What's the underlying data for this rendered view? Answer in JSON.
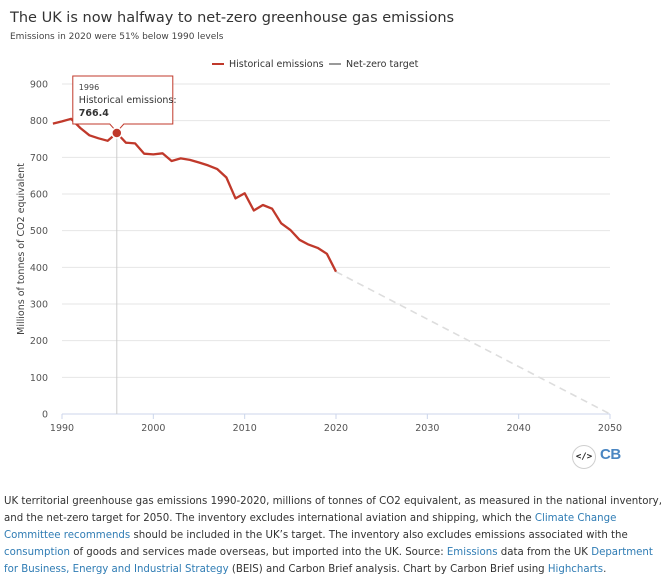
{
  "title": "The UK is now halfway to net-zero greenhouse gas emissions",
  "subtitle": "Emissions in 2020 were 51% below 1990 levels",
  "tooltip": {
    "year": "1996",
    "label": "Historical emissions:",
    "value": "766.4"
  },
  "embed_icon": "code-embed-icon",
  "logo_text": "CB",
  "caption": {
    "t1": "UK territorial greenhouse gas emissions 1990-2020, millions of tonnes of CO2 equivalent, as measured in the national inventory, and the net-zero target for 2050. The inventory excludes international aviation and shipping, which the ",
    "link1": "Climate Change Committee recommends",
    "t2": " should be included in the UK’s target. The inventory also excludes emissions associated with the ",
    "link2": "consumption",
    "t3": " of goods and services made overseas, but imported into the UK. Source: ",
    "link3": "Emissions",
    "t4": " data from the UK ",
    "link4": "Department for Business, Energy and Industrial Strategy",
    "t5": " (BEIS) and Carbon Brief analysis. Chart by Carbon Brief using ",
    "link5": "Highcharts",
    "t6": "."
  },
  "colors": {
    "historical": "#c0392b",
    "target": "#dddddd",
    "grid": "#e6e6e6",
    "crosshair": "#cccccc"
  },
  "chart_data": {
    "type": "line",
    "title": "The UK is now halfway to net-zero greenhouse gas emissions",
    "subtitle": "Emissions in 2020 were 51% below 1990 levels",
    "xlabel": "",
    "ylabel": "Millions of tonnes of CO2 equivalent",
    "xlim": [
      1990,
      2050
    ],
    "ylim": [
      0,
      900
    ],
    "x_ticks": [
      1990,
      2000,
      2010,
      2020,
      2030,
      2040,
      2050
    ],
    "y_ticks": [
      0,
      100,
      200,
      300,
      400,
      500,
      600,
      700,
      800,
      900
    ],
    "grid": true,
    "legend_position": "top-right",
    "series": [
      {
        "name": "Historical emissions",
        "x": [
          1989,
          1990,
          1991,
          1992,
          1993,
          1994,
          1995,
          1996,
          1997,
          1998,
          1999,
          2000,
          2001,
          2002,
          2003,
          2004,
          2005,
          2006,
          2007,
          2008,
          2009,
          2010,
          2011,
          2012,
          2013,
          2014,
          2015,
          2016,
          2017,
          2018,
          2019,
          2020
        ],
        "y": [
          792,
          798,
          805,
          780,
          760,
          752,
          745,
          766.4,
          740,
          738,
          710,
          708,
          711,
          690,
          697,
          693,
          686,
          678,
          668,
          645,
          588,
          602,
          555,
          570,
          560,
          520,
          502,
          475,
          462,
          453,
          437,
          388
        ]
      },
      {
        "name": "Net-zero target",
        "x": [
          2020,
          2050
        ],
        "y": [
          388,
          0
        ]
      }
    ]
  }
}
